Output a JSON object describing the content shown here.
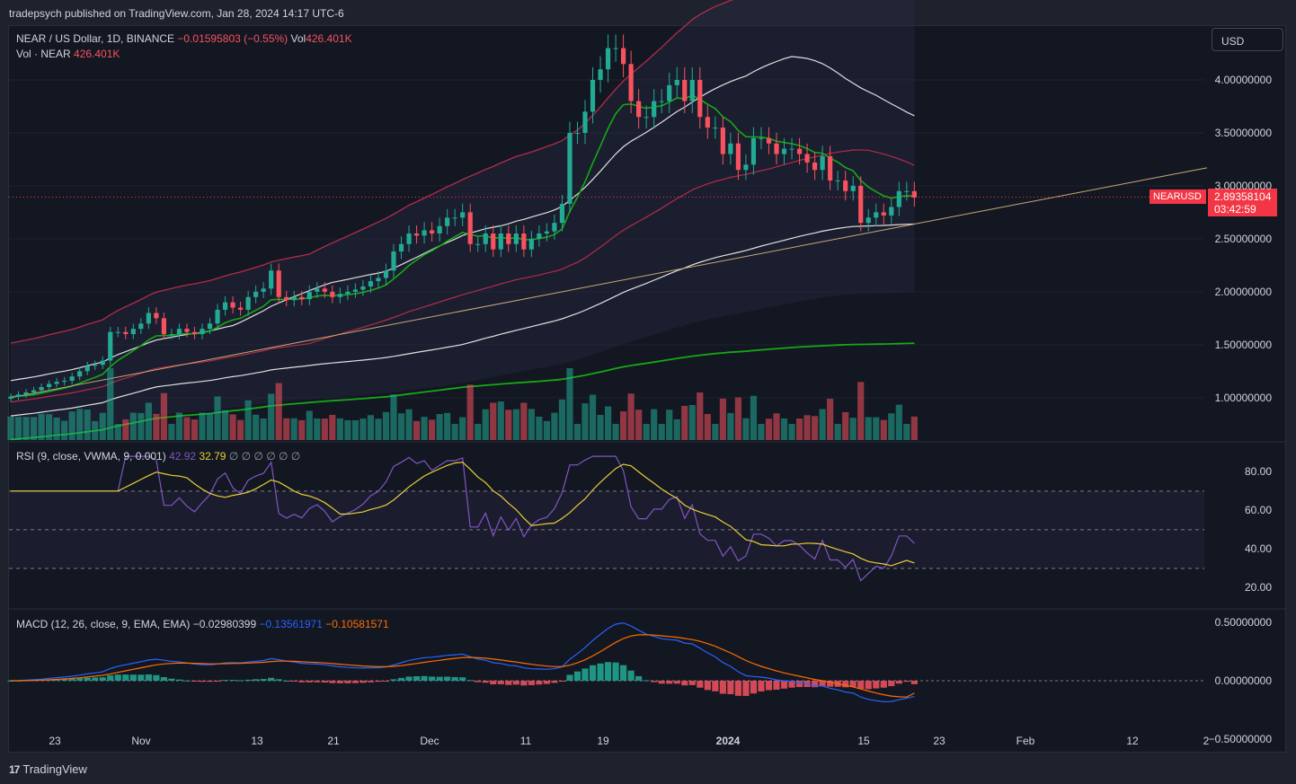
{
  "header": {
    "publisher_text": "tradepsych published on TradingView.com, Jan 28, 2024 14:17 UTC-6"
  },
  "legend": {
    "symbol": "NEAR / US Dollar, 1D, BINANCE",
    "change": "−0.01595803 (−0.55%)",
    "vol_label": "Vol",
    "vol_value": "426.401K",
    "vol_row_label": "Vol · NEAR",
    "vol_row_value": "426.401K"
  },
  "rsi_legend": {
    "label": "RSI (9, close, VWMA, 9, 0.001)",
    "rsi": "42.92",
    "signal": "32.79",
    "hidden": "∅ ∅ ∅ ∅ ∅ ∅"
  },
  "macd_legend": {
    "label": "MACD (12, 26, close, 9, EMA, EMA)",
    "hist": "−0.02980399",
    "macd": "−0.13561971",
    "signal": "−0.10581571"
  },
  "currency_select": "USD",
  "price_tag": {
    "symbol": "NEARUSD",
    "price": "2.89358104",
    "countdown": "03:42:59"
  },
  "branding": "TradingView",
  "colors": {
    "up": "#22ab94",
    "down": "#f7525f",
    "background": "#131722",
    "ema_green": "#16a816",
    "band_red": "#b22c4b",
    "rsi": "#7e57c2",
    "rsi_ma": "#e8cf37",
    "macd": "#2962ff",
    "macd_signal": "#ff6d00"
  },
  "chart_data": [
    {
      "type": "candlestick",
      "title": "NEAR / US Dollar, 1D, BINANCE",
      "ylim": [
        0.6,
        4.5
      ],
      "y_ticks": [
        "4.00000000",
        "3.50000000",
        "3.00000000",
        "2.50000000",
        "2.00000000",
        "1.50000000",
        "1.00000000"
      ],
      "x_ticks": [
        "23",
        "Nov",
        "13",
        "21",
        "Dec",
        "11",
        "19",
        "2024",
        "15",
        "23",
        "Feb",
        "12",
        "2"
      ],
      "x_tick_bold": "2024",
      "last_price": 2.89358104,
      "close_series_approx": [
        1.01,
        1.03,
        1.05,
        1.07,
        1.1,
        1.13,
        1.15,
        1.16,
        1.2,
        1.25,
        1.3,
        1.31,
        1.35,
        1.62,
        1.62,
        1.6,
        1.65,
        1.7,
        1.8,
        1.75,
        1.6,
        1.6,
        1.65,
        1.62,
        1.6,
        1.65,
        1.7,
        1.83,
        1.9,
        1.85,
        1.83,
        1.95,
        2.0,
        2.03,
        2.2,
        1.95,
        1.92,
        1.95,
        1.93,
        2.0,
        2.03,
        2.0,
        1.95,
        1.98,
        2.0,
        2.02,
        2.05,
        2.1,
        2.13,
        2.2,
        2.38,
        2.45,
        2.55,
        2.53,
        2.58,
        2.55,
        2.62,
        2.7,
        2.7,
        2.75,
        2.45,
        2.45,
        2.55,
        2.4,
        2.55,
        2.45,
        2.55,
        2.4,
        2.5,
        2.55,
        2.57,
        2.65,
        2.83,
        3.5,
        3.5,
        3.7,
        4.0,
        4.1,
        4.3,
        4.3,
        4.15,
        3.8,
        3.65,
        3.65,
        3.8,
        3.8,
        3.95,
        4.0,
        3.8,
        4.0,
        3.65,
        3.55,
        3.55,
        3.3,
        3.4,
        3.15,
        3.2,
        3.45,
        3.45,
        3.4,
        3.3,
        3.35,
        3.35,
        3.3,
        3.22,
        3.15,
        3.28,
        3.05,
        3.05,
        2.95,
        3.0,
        2.65,
        2.7,
        2.75,
        2.72,
        2.8,
        2.95,
        2.95,
        2.89
      ]
    },
    {
      "type": "bar",
      "title": "Vol · NEAR",
      "last_value": "426.401K"
    },
    {
      "type": "line",
      "title": "RSI (9, close, VWMA, 9, 0.001)",
      "ylim": [
        10,
        95
      ],
      "y_ticks": [
        "80.00",
        "60.00",
        "40.00",
        "20.00"
      ],
      "levels": [
        70,
        50,
        30
      ],
      "series": [
        {
          "name": "RSI",
          "last": 42.92
        },
        {
          "name": "RSI-based MA",
          "last": 32.79
        }
      ]
    },
    {
      "type": "line",
      "title": "MACD (12, 26, close, 9, EMA, EMA)",
      "ylim": [
        -0.6,
        0.6
      ],
      "y_ticks": [
        "0.50000000",
        "0.00000000",
        "−0.50000000"
      ],
      "series": [
        {
          "name": "Histogram",
          "last": -0.02980399
        },
        {
          "name": "MACD",
          "last": -0.13561971
        },
        {
          "name": "Signal",
          "last": -0.10581571
        }
      ]
    }
  ]
}
